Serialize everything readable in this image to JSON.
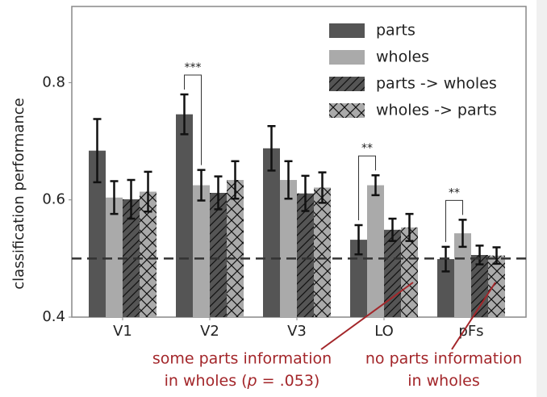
{
  "chart_data": {
    "type": "bar",
    "ylabel": "classification performance",
    "categories": [
      "V1",
      "V2",
      "V3",
      "LO",
      "pFs"
    ],
    "series": [
      {
        "name": "parts",
        "color": "#555555",
        "pattern": "none",
        "values": [
          0.684,
          0.746,
          0.688,
          0.532,
          0.499
        ],
        "errors": [
          0.054,
          0.034,
          0.038,
          0.025,
          0.021
        ]
      },
      {
        "name": "wholes",
        "color": "#aaaaaa",
        "pattern": "none",
        "values": [
          0.604,
          0.625,
          0.634,
          0.625,
          0.543
        ],
        "errors": [
          0.028,
          0.026,
          0.032,
          0.017,
          0.023
        ]
      },
      {
        "name": "parts -> wholes",
        "color": "#555555",
        "pattern": "hatch",
        "values": [
          0.601,
          0.612,
          0.611,
          0.549,
          0.506
        ],
        "errors": [
          0.033,
          0.028,
          0.03,
          0.019,
          0.016
        ]
      },
      {
        "name": "wholes -> parts",
        "color": "#aaaaaa",
        "pattern": "cross",
        "values": [
          0.614,
          0.634,
          0.621,
          0.553,
          0.505
        ],
        "errors": [
          0.034,
          0.032,
          0.026,
          0.023,
          0.014
        ]
      }
    ],
    "ylim": [
      0.4,
      0.93
    ],
    "yticks": [
      0.4,
      0.6,
      0.8
    ],
    "chance_level": 0.5,
    "significance": [
      {
        "label": "***",
        "category": "V2"
      },
      {
        "label": "**",
        "category": "LO"
      },
      {
        "label": "**",
        "category": "pFs"
      }
    ],
    "legend": "upper right",
    "annotations": [
      {
        "line1": "some parts information",
        "line2": [
          "in wholes (",
          "p",
          " = .053)"
        ]
      },
      {
        "line1": "no parts information",
        "line2": [
          "in wholes"
        ]
      }
    ]
  }
}
